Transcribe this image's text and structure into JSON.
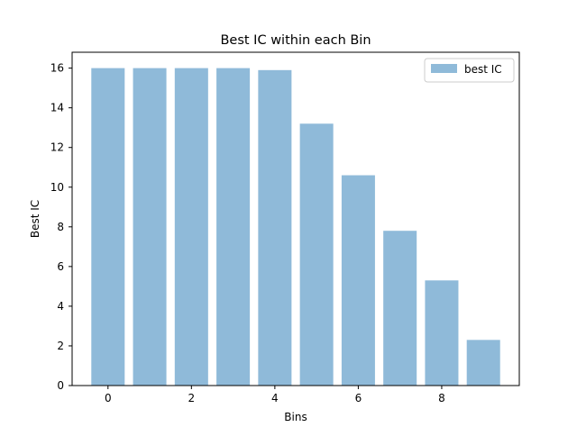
{
  "chart_data": {
    "type": "bar",
    "title": "Best IC within each Bin",
    "xlabel": "Bins",
    "ylabel": "Best IC",
    "x": [
      0,
      1,
      2,
      3,
      4,
      5,
      6,
      7,
      8,
      9
    ],
    "values": [
      16.0,
      16.0,
      16.0,
      16.0,
      15.9,
      13.2,
      10.6,
      7.8,
      5.3,
      2.3
    ],
    "series": [
      {
        "name": "best IC",
        "values": [
          16.0,
          16.0,
          16.0,
          16.0,
          15.9,
          13.2,
          10.6,
          7.8,
          5.3,
          2.3
        ]
      }
    ],
    "xlim": [
      -0.86,
      9.86
    ],
    "ylim": [
      0,
      16.8
    ],
    "xticks": [
      "0",
      "2",
      "4",
      "6",
      "8"
    ],
    "yticks": [
      "0",
      "2",
      "4",
      "6",
      "8",
      "10",
      "12",
      "14",
      "16"
    ],
    "bar_color": "#8fbad9",
    "grid": false,
    "legend_position": "top-right"
  }
}
